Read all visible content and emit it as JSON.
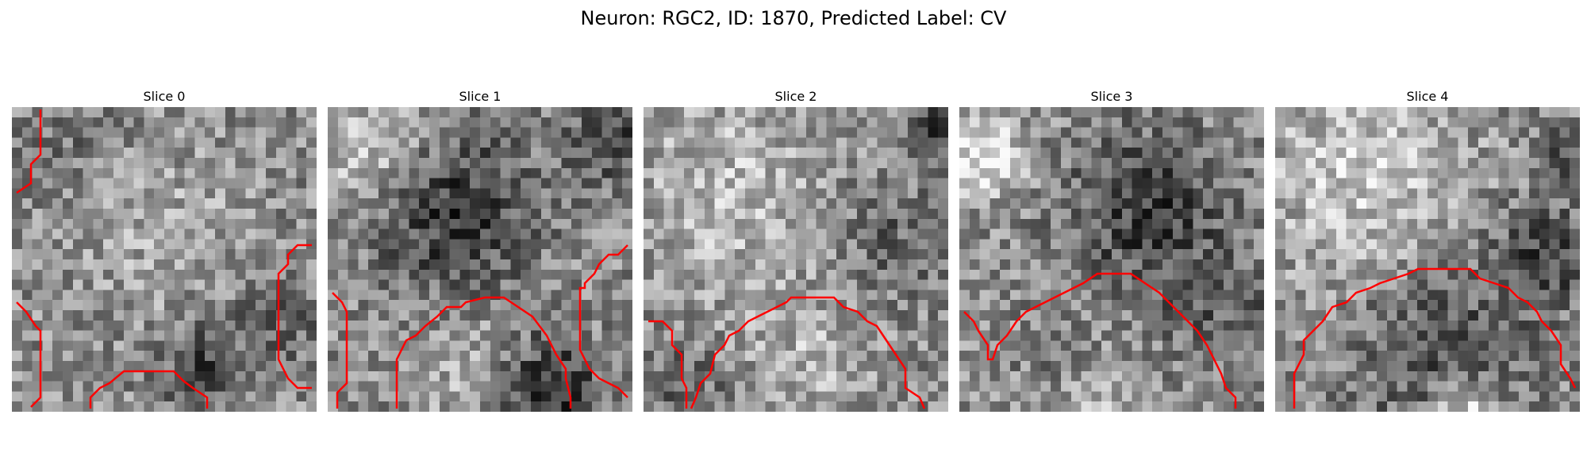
{
  "figure": {
    "title": "Neuron: RGC2, ID: 1870, Predicted Label: CV"
  },
  "panels": [
    {
      "title": "Slice 0"
    },
    {
      "title": "Slice 1"
    },
    {
      "title": "Slice 2"
    },
    {
      "title": "Slice 3"
    },
    {
      "title": "Slice 4"
    }
  ],
  "colors": {
    "contour": "#ff0000",
    "background": "#ffffff"
  }
}
